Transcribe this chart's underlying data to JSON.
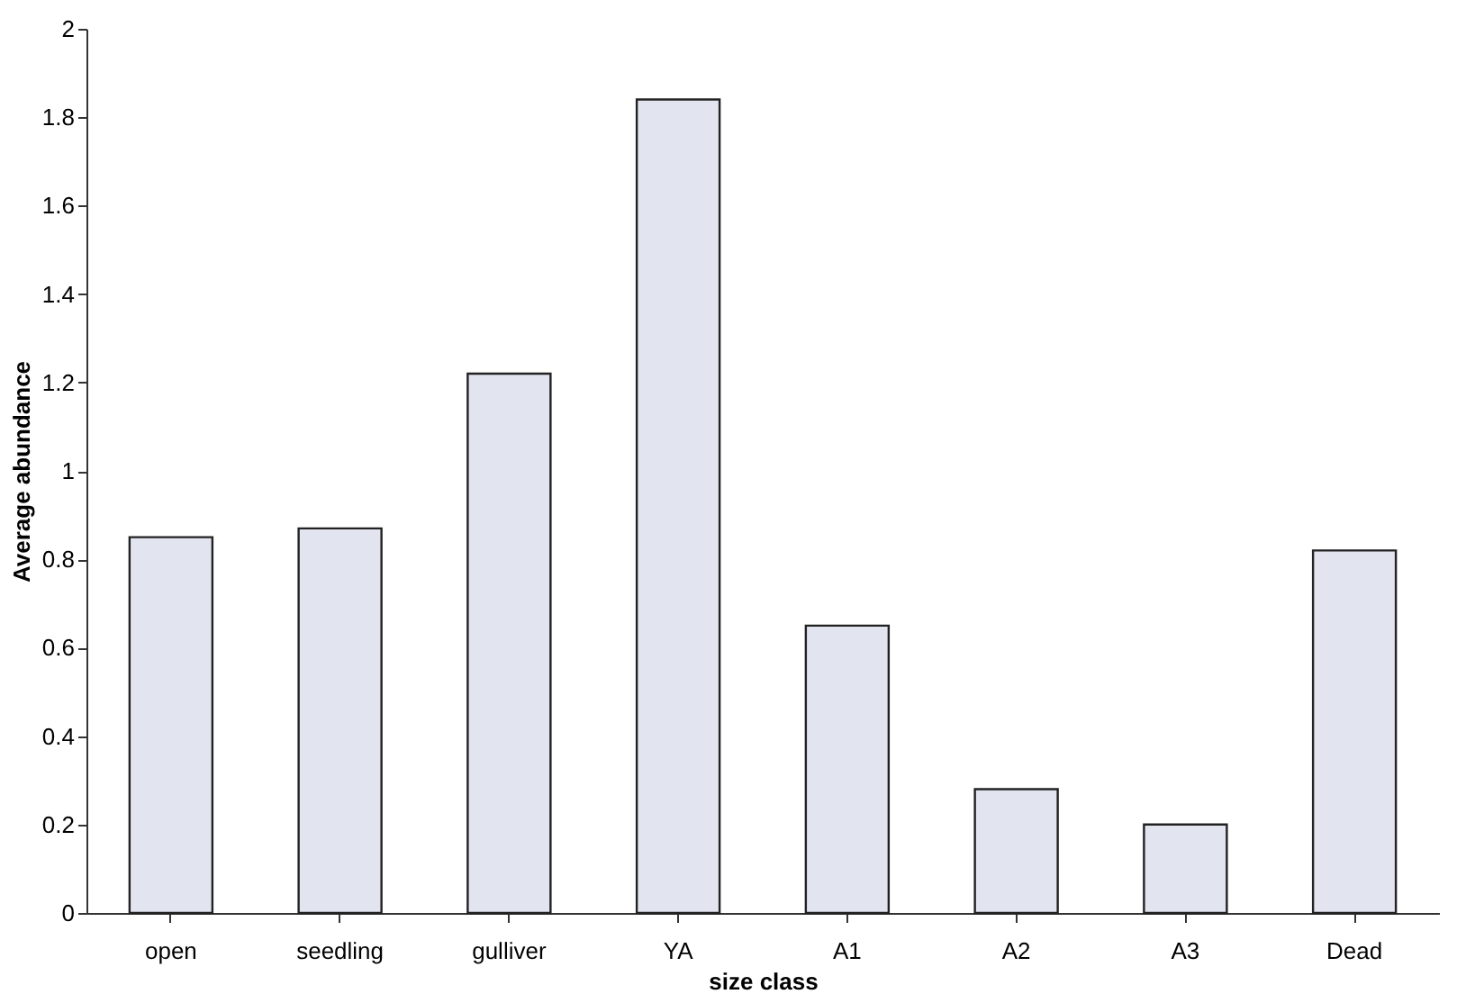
{
  "chart_data": {
    "type": "bar",
    "xlabel": "size class",
    "ylabel": "Average abundance",
    "categories": [
      "open",
      "seedling",
      "gulliver",
      "YA",
      "A1",
      "A2",
      "A3",
      "Dead"
    ],
    "values": [
      0.85,
      0.87,
      1.22,
      1.84,
      0.65,
      0.28,
      0.2,
      0.82
    ],
    "color": "#e2e4f0",
    "ylim": [
      0,
      2
    ],
    "yticks": [
      0,
      0.2,
      0.4,
      0.6,
      0.8,
      1,
      1.2,
      1.4,
      1.6,
      1.8,
      2
    ],
    "grid": false
  }
}
